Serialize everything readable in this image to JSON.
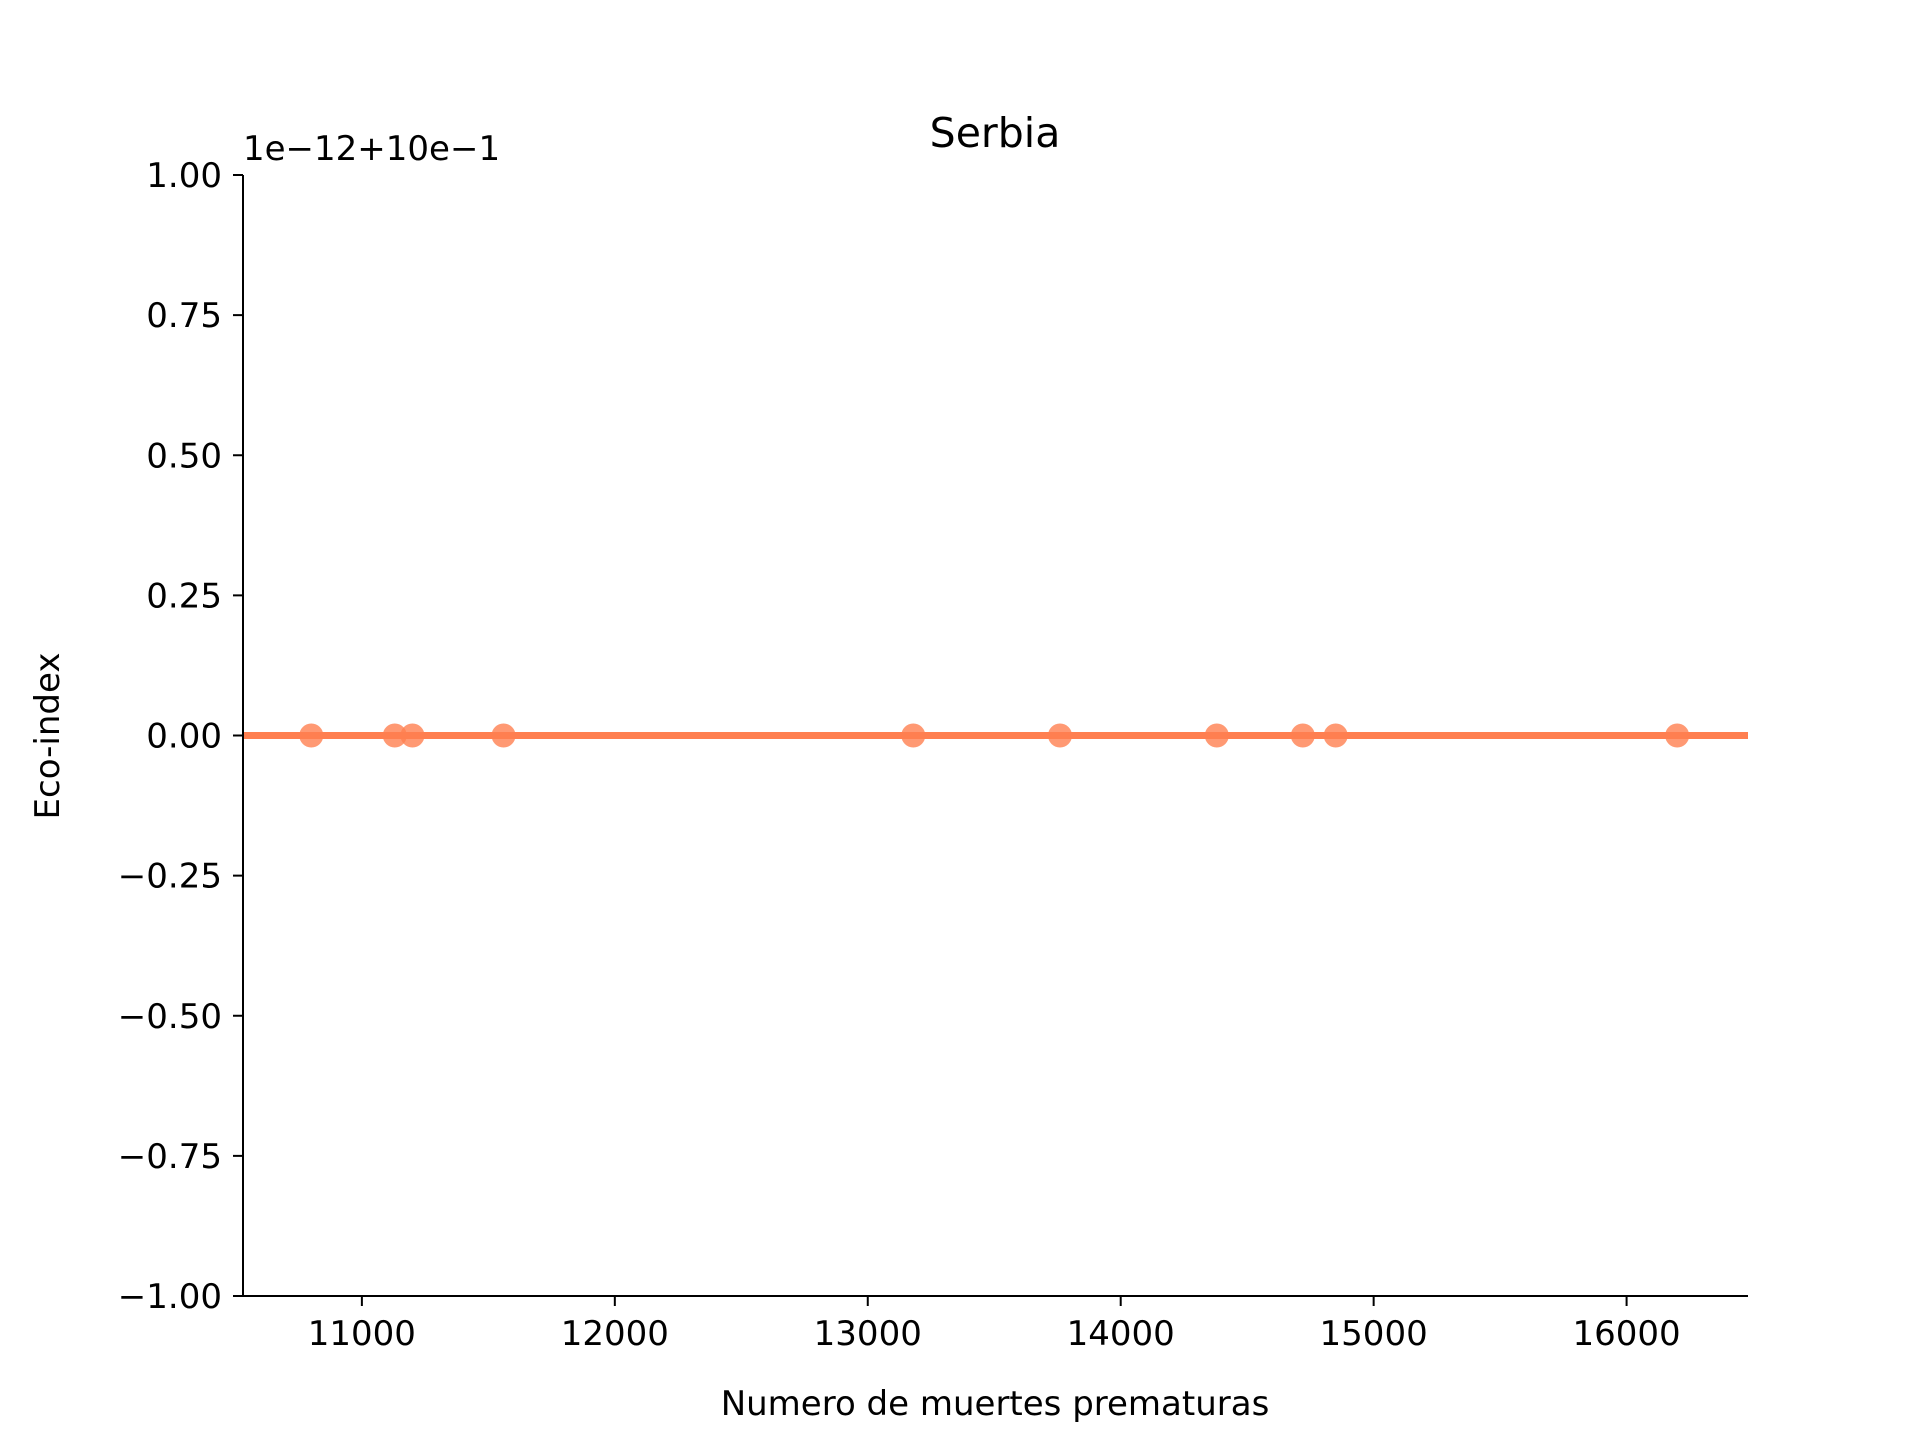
{
  "chart_data": {
    "type": "scatter",
    "title": "Serbia",
    "xlabel": "Numero de muertes prematuras",
    "ylabel": "Eco-index",
    "offset_text": "1e−12+10e−1",
    "xlim": [
      10530,
      16480
    ],
    "ylim": [
      -1.0,
      1.0
    ],
    "xticks": [
      11000,
      12000,
      13000,
      14000,
      15000,
      16000
    ],
    "xtick_labels": [
      "11000",
      "12000",
      "13000",
      "14000",
      "15000",
      "16000"
    ],
    "yticks": [
      -1.0,
      -0.75,
      -0.5,
      -0.25,
      0.0,
      0.25,
      0.5,
      0.75,
      1.0
    ],
    "ytick_labels": [
      "−1.00",
      "−0.75",
      "−0.50",
      "−0.25",
      "0.00",
      "0.25",
      "0.50",
      "0.75",
      "1.00"
    ],
    "grid": false,
    "color": "#FF7F50",
    "series": [
      {
        "x": [
          10800,
          11130,
          11200,
          11560,
          13180,
          13760,
          14380,
          14720,
          14850,
          16200
        ],
        "y": [
          0,
          0,
          0,
          0,
          0,
          0,
          0,
          0,
          0,
          0
        ]
      }
    ],
    "fit_line": {
      "x": [
        10530,
        16480
      ],
      "y": [
        0,
        0
      ]
    }
  }
}
